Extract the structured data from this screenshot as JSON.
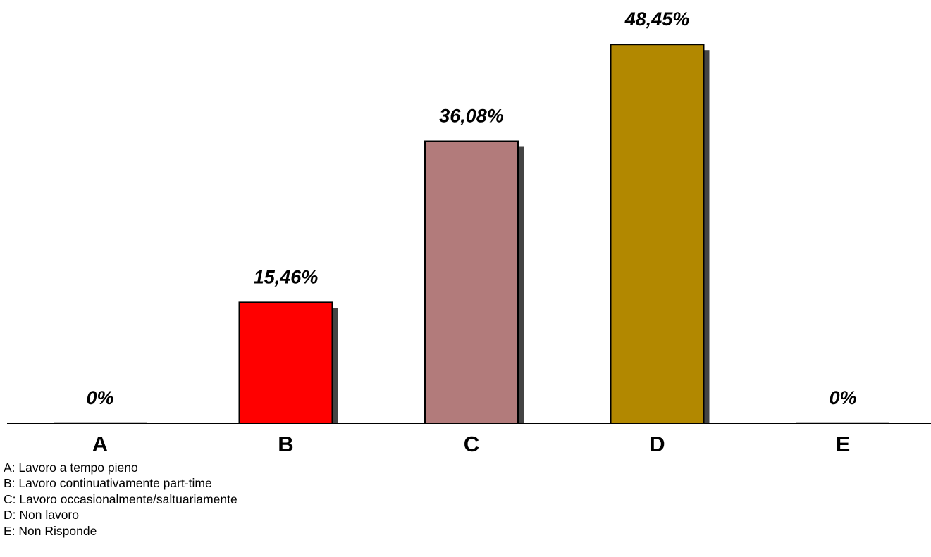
{
  "chart_data": {
    "type": "bar",
    "categories": [
      "A",
      "B",
      "C",
      "D",
      "E"
    ],
    "values": [
      0,
      15.46,
      36.08,
      48.45,
      0
    ],
    "value_labels": [
      "0%",
      "15,46%",
      "36,08%",
      "48,45%",
      "0%"
    ],
    "colors": [
      "#C0C0C0",
      "#FF0000",
      "#B27B7B",
      "#B28800",
      "#C0C0C0"
    ],
    "ylim": [
      0,
      50
    ],
    "grid": false,
    "legend": [
      "A: Lavoro a tempo pieno",
      "B: Lavoro continuativamente part-time",
      "C: Lavoro occasionalmente/saltuariamente",
      "D: Non lavoro",
      "E: Non Risponde"
    ]
  }
}
